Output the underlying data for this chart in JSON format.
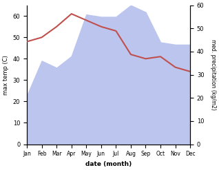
{
  "months": [
    "Jan",
    "Feb",
    "Mar",
    "Apr",
    "May",
    "Jun",
    "Jul",
    "Aug",
    "Sep",
    "Oct",
    "Nov",
    "Dec"
  ],
  "max_temp": [
    48,
    50,
    55,
    61,
    58,
    55,
    53,
    42,
    40,
    41,
    36,
    34
  ],
  "precipitation": [
    21,
    36,
    33,
    38,
    56,
    55,
    55,
    60,
    57,
    44,
    43,
    43
  ],
  "temp_color": "#c0504d",
  "precip_fill_color": "#bcc5ee",
  "left_ylabel": "max temp (C)",
  "right_ylabel": "med. precipitation (kg/m2)",
  "xlabel": "date (month)",
  "ylim_left": [
    0,
    65
  ],
  "ylim_right": [
    0,
    60
  ],
  "yticks_left": [
    0,
    10,
    20,
    30,
    40,
    50,
    60
  ],
  "yticks_right": [
    0,
    10,
    20,
    30,
    40,
    50,
    60
  ],
  "background_color": "#ffffff"
}
